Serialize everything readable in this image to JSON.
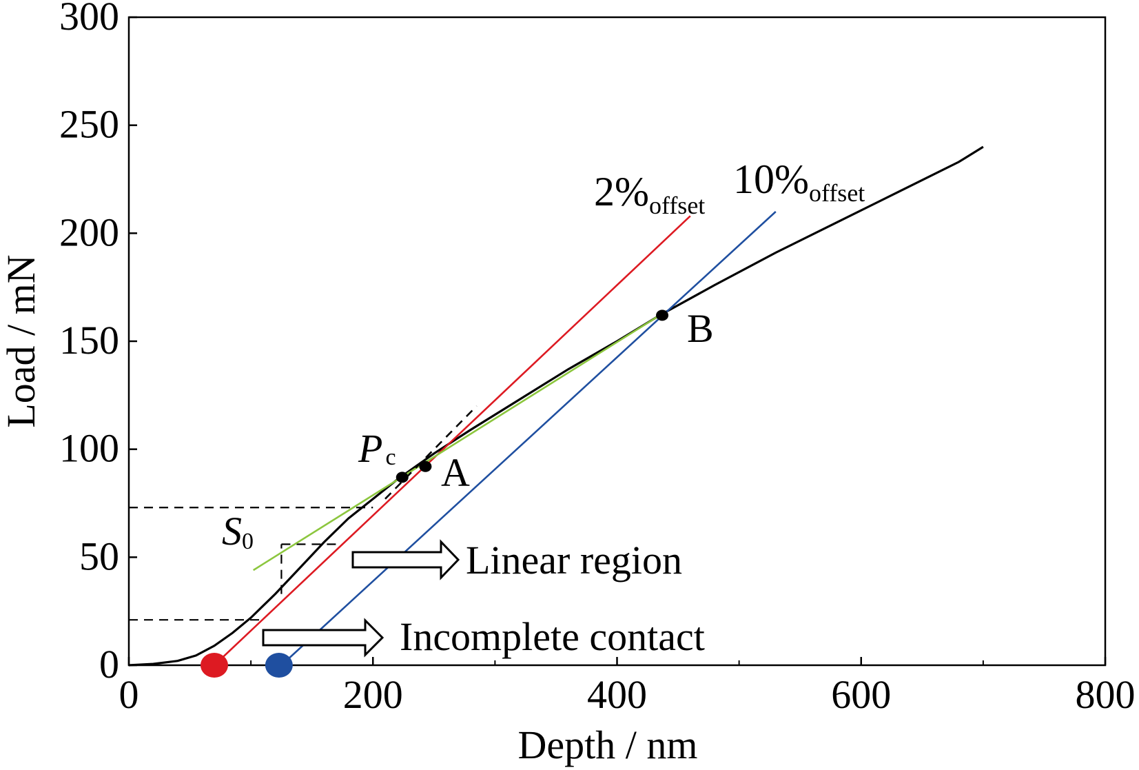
{
  "chart_data": {
    "type": "line",
    "xlabel": "Depth / nm",
    "ylabel": "Load / mN",
    "xlim": [
      0,
      800
    ],
    "ylim": [
      0,
      300
    ],
    "x_ticks": [
      0,
      200,
      400,
      600,
      800
    ],
    "y_ticks": [
      0,
      50,
      100,
      150,
      200,
      250,
      300
    ],
    "grid": false,
    "series": [
      {
        "color": "#000000",
        "x": [
          0,
          20,
          40,
          55,
          70,
          85,
          100,
          120,
          140,
          160,
          180,
          200,
          220,
          235,
          250,
          280,
          320,
          360,
          400,
          435,
          480,
          530,
          580,
          630,
          680,
          700
        ],
        "y": [
          0,
          0.6,
          2.0,
          4.5,
          9,
          15,
          22,
          33,
          45,
          57,
          68,
          77,
          86,
          92,
          98,
          109,
          123,
          137,
          150,
          162,
          176,
          191,
          205,
          219,
          233,
          240
        ]
      },
      {
        "color": "#dd1a22",
        "x": [
          70,
          460
        ],
        "y": [
          0,
          208
        ]
      },
      {
        "color": "#1f4fa0",
        "x": [
          125,
          530
        ],
        "y": [
          0,
          210
        ]
      },
      {
        "color": "#8cc63e",
        "x": [
          102,
          435
        ],
        "y": [
          44,
          162
        ]
      },
      {
        "color": "#000000",
        "dashed": true,
        "x": [
          210,
          285
        ],
        "y": [
          77,
          120
        ]
      }
    ],
    "points": [
      {
        "label": "A",
        "x": 243,
        "y": 92,
        "color": "#000000"
      },
      {
        "label": "B",
        "x": 437,
        "y": 162,
        "color": "#000000"
      },
      {
        "label": "Pc",
        "x": 224,
        "y": 87,
        "color": "#000000"
      },
      {
        "label": "",
        "x": 70,
        "y": 0,
        "color": "#dd1a22"
      },
      {
        "label": "",
        "x": 123,
        "y": 0,
        "color": "#1f4fa0"
      }
    ],
    "reference_lines": [
      {
        "y": 73,
        "x_from": 0,
        "x_to": 200,
        "dashed": true
      },
      {
        "y": 56,
        "x_from": 125,
        "x_to": 175,
        "dashed": true
      },
      {
        "x": 125,
        "y_from": 33,
        "y_to": 56,
        "dashed": true
      },
      {
        "y": 21,
        "x_from": 0,
        "x_to": 110,
        "dashed": true
      }
    ],
    "annotations": {
      "offset_2_main": "2%",
      "offset_2_sub": "offset",
      "offset_10_main": "10%",
      "offset_10_sub": "offset",
      "point_a": "A",
      "point_b": "B",
      "pc_main": "P",
      "pc_sub": "c",
      "s0_main": "S",
      "s0_sub": "0",
      "linear_region": "Linear region",
      "incomplete_contact": "Incomplete contact"
    }
  }
}
